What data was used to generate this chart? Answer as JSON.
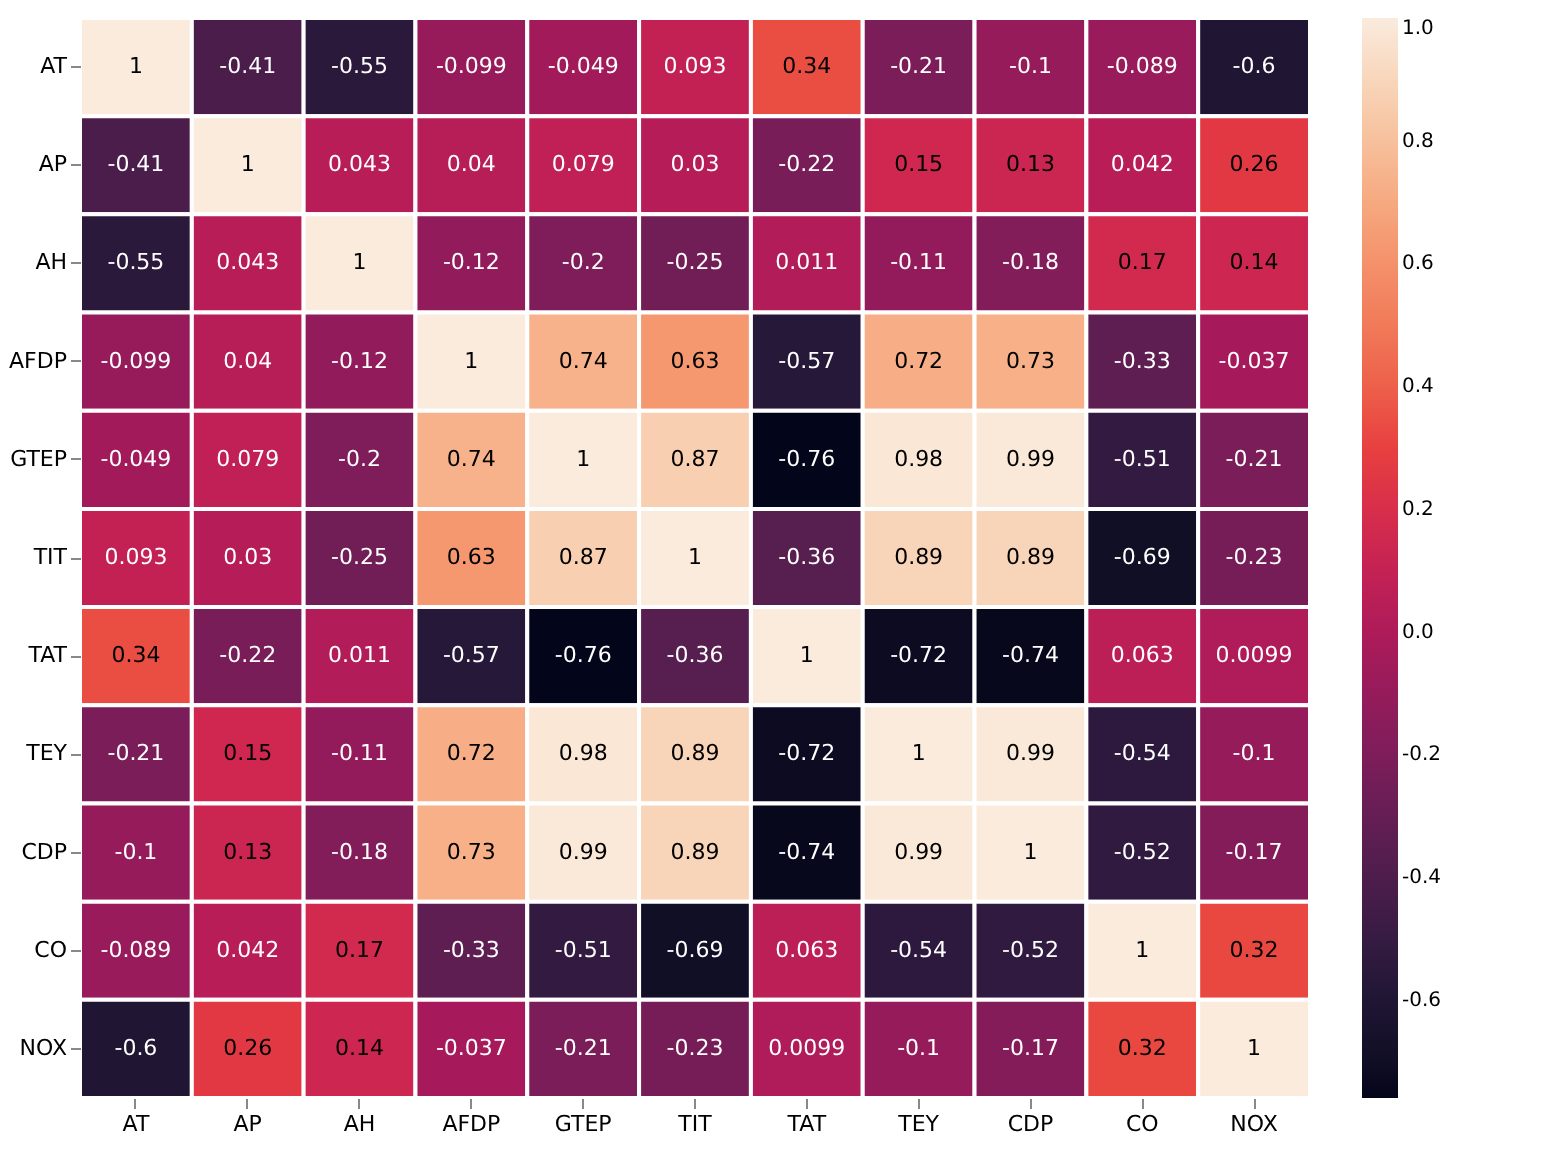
{
  "chart_data": {
    "type": "heatmap",
    "categories": [
      "AT",
      "AP",
      "AH",
      "AFDP",
      "GTEP",
      "TIT",
      "TAT",
      "TEY",
      "CDP",
      "CO",
      "NOX"
    ],
    "y_categories": [
      "AT",
      "AP",
      "AH",
      "AFDP",
      "GTEP",
      "TIT",
      "TAT",
      "TEY",
      "CDP",
      "CO",
      "NOX"
    ],
    "cells": [
      [
        1,
        -0.41,
        -0.55,
        -0.099,
        -0.049,
        0.093,
        0.34,
        -0.21,
        -0.1,
        -0.089,
        -0.6
      ],
      [
        -0.41,
        1,
        0.043,
        0.04,
        0.079,
        0.03,
        -0.22,
        0.15,
        0.13,
        0.042,
        0.26
      ],
      [
        -0.55,
        0.043,
        1,
        -0.12,
        -0.2,
        -0.25,
        0.011,
        -0.11,
        -0.18,
        0.17,
        0.14
      ],
      [
        -0.099,
        0.04,
        -0.12,
        1,
        0.74,
        0.63,
        -0.57,
        0.72,
        0.73,
        -0.33,
        -0.037
      ],
      [
        -0.049,
        0.079,
        -0.2,
        0.74,
        1,
        0.87,
        -0.76,
        0.98,
        0.99,
        -0.51,
        -0.21
      ],
      [
        0.093,
        0.03,
        -0.25,
        0.63,
        0.87,
        1,
        -0.36,
        0.89,
        0.89,
        -0.69,
        -0.23
      ],
      [
        0.34,
        -0.22,
        0.011,
        -0.57,
        -0.76,
        -0.36,
        1,
        -0.72,
        -0.74,
        0.063,
        0.0099
      ],
      [
        -0.21,
        0.15,
        -0.11,
        0.72,
        0.98,
        0.89,
        -0.72,
        1,
        0.99,
        -0.54,
        -0.1
      ],
      [
        -0.1,
        0.13,
        -0.18,
        0.73,
        0.99,
        0.89,
        -0.74,
        0.99,
        1,
        -0.52,
        -0.17
      ],
      [
        -0.089,
        0.042,
        0.17,
        -0.33,
        -0.51,
        -0.69,
        0.063,
        -0.54,
        -0.52,
        1,
        0.32
      ],
      [
        -0.6,
        0.26,
        0.14,
        -0.037,
        -0.21,
        -0.23,
        0.0099,
        -0.1,
        -0.17,
        0.32,
        1
      ]
    ],
    "clim": [
      -0.76,
      1
    ],
    "cticks": [
      -0.6,
      -0.4,
      -0.2,
      {
        "value": 0,
        "label": "0.0"
      },
      0.2,
      0.4,
      0.6,
      0.8,
      {
        "value": 1,
        "label": "1.0"
      }
    ],
    "data_labels": true
  }
}
